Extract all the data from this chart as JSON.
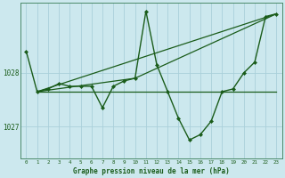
{
  "xlabel": "Graphe pression niveau de la mer (hPa)",
  "background_color": "#cce8ee",
  "grid_color": "#aad0da",
  "line_color": "#1a5c1a",
  "x_ticks": [
    0,
    1,
    2,
    3,
    4,
    5,
    6,
    7,
    8,
    9,
    10,
    11,
    12,
    13,
    14,
    15,
    16,
    17,
    18,
    19,
    20,
    21,
    22,
    23
  ],
  "ylim": [
    1026.4,
    1029.3
  ],
  "yticks": [
    1027,
    1028
  ],
  "series_main": {
    "x": [
      0,
      1,
      2,
      3,
      4,
      5,
      6,
      7,
      8,
      9,
      10,
      11,
      12,
      13,
      14,
      15,
      16,
      17,
      18,
      19,
      20,
      21,
      22,
      23
    ],
    "y": [
      1028.4,
      1027.65,
      1027.7,
      1027.8,
      1027.75,
      1027.75,
      1027.75,
      1027.35,
      1027.75,
      1027.85,
      1027.9,
      1029.15,
      1028.15,
      1027.65,
      1027.15,
      1026.75,
      1026.85,
      1027.1,
      1027.65,
      1027.7,
      1028.0,
      1028.2,
      1029.05,
      1029.1
    ]
  },
  "series_flat": {
    "x": [
      1,
      23
    ],
    "y": [
      1027.65,
      1027.65
    ]
  },
  "series_diag1": {
    "x": [
      1,
      23
    ],
    "y": [
      1027.65,
      1029.1
    ]
  },
  "series_diag2": {
    "x": [
      1,
      10,
      23
    ],
    "y": [
      1027.65,
      1027.9,
      1029.1
    ]
  }
}
